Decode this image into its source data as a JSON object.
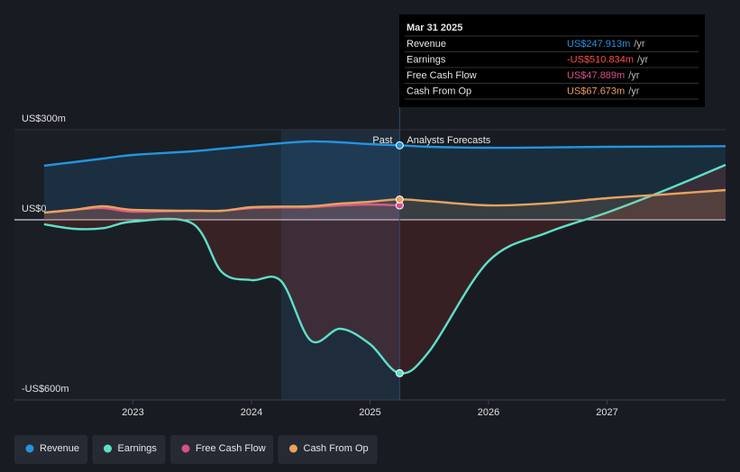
{
  "chart_data": {
    "type": "line",
    "x": [
      2022.25,
      2022.5,
      2022.75,
      2023,
      2023.5,
      2023.75,
      2024,
      2024.25,
      2024.5,
      2024.75,
      2025,
      2025.25,
      2025.5,
      2026,
      2026.5,
      2027,
      2027.5,
      2028
    ],
    "series": [
      {
        "name": "Revenue",
        "color": "#2394df",
        "values": [
          180,
          192,
          204,
          216,
          228,
          237,
          246,
          255,
          261,
          258,
          252,
          248,
          243,
          240,
          241,
          243,
          244,
          245
        ]
      },
      {
        "name": "Earnings",
        "color": "#5de0c8",
        "values": [
          -15,
          -30,
          -28,
          -6,
          -12,
          -174,
          -201,
          -204,
          -402,
          -363,
          -414,
          -511,
          -438,
          -138,
          -42,
          24,
          100,
          183
        ]
      },
      {
        "name": "Free Cash Flow",
        "color": "#d84f8a",
        "values": [
          24,
          33,
          39,
          27,
          30,
          30,
          39,
          41,
          42,
          48,
          51,
          48,
          null,
          null,
          null,
          null,
          null,
          null
        ]
      },
      {
        "name": "Cash From Op",
        "color": "#e8a25e",
        "values": [
          24,
          33,
          45,
          33,
          30,
          30,
          42,
          44,
          45,
          54,
          60,
          68,
          62,
          48,
          55,
          72,
          85,
          99
        ]
      }
    ],
    "xlim": [
      2022,
      2028
    ],
    "xticks": [
      2023,
      2024,
      2025,
      2026,
      2027
    ],
    "ylim": [
      -600,
      300
    ],
    "yticks": [
      {
        "value": 300,
        "label": "US$300m"
      },
      {
        "value": 0,
        "label": "US$0"
      },
      {
        "value": -600,
        "label": "-US$600m"
      }
    ],
    "grid": true,
    "highlight": [
      2024.25,
      2025.25
    ],
    "annotations": [
      "Past",
      "Analysts Forecasts"
    ],
    "tooltip": {
      "title": "Mar 31 2025",
      "x": 2025.25,
      "unit": "/yr",
      "values": [
        247.913,
        -510.834,
        47.889,
        67.673
      ],
      "value_labels": [
        "US$247.913m",
        "-US$510.834m",
        "US$47.889m",
        "US$67.673m"
      ]
    }
  }
}
